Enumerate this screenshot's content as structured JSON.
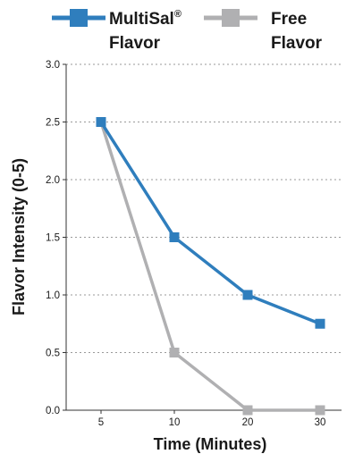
{
  "colors": {
    "multisal": "#2f7ebd",
    "free": "#b0b0b2"
  },
  "legend": {
    "multisal_line1": "MultiSal",
    "multisal_sup": "®",
    "multisal_line2": "Flavor",
    "free_line1": "Free",
    "free_line2": "Flavor"
  },
  "chart_data": {
    "type": "line",
    "xlabel": "Time (Minutes)",
    "ylabel": "Flavor Intensity (0-5)",
    "categories": [
      "5",
      "10",
      "20",
      "30"
    ],
    "y_ticks": [
      "0.0",
      "0.5",
      "1.0",
      "1.5",
      "2.0",
      "2.5",
      "3.0"
    ],
    "ylim": [
      0,
      3
    ],
    "grid": true,
    "legend_position": "top",
    "series": [
      {
        "name": "MultiSal® Flavor",
        "color": "#2f7ebd",
        "values": [
          2.5,
          1.5,
          1.0,
          0.75
        ]
      },
      {
        "name": "Free Flavor",
        "color": "#b0b0b2",
        "values": [
          2.5,
          0.5,
          0.0,
          0.0
        ]
      }
    ]
  }
}
